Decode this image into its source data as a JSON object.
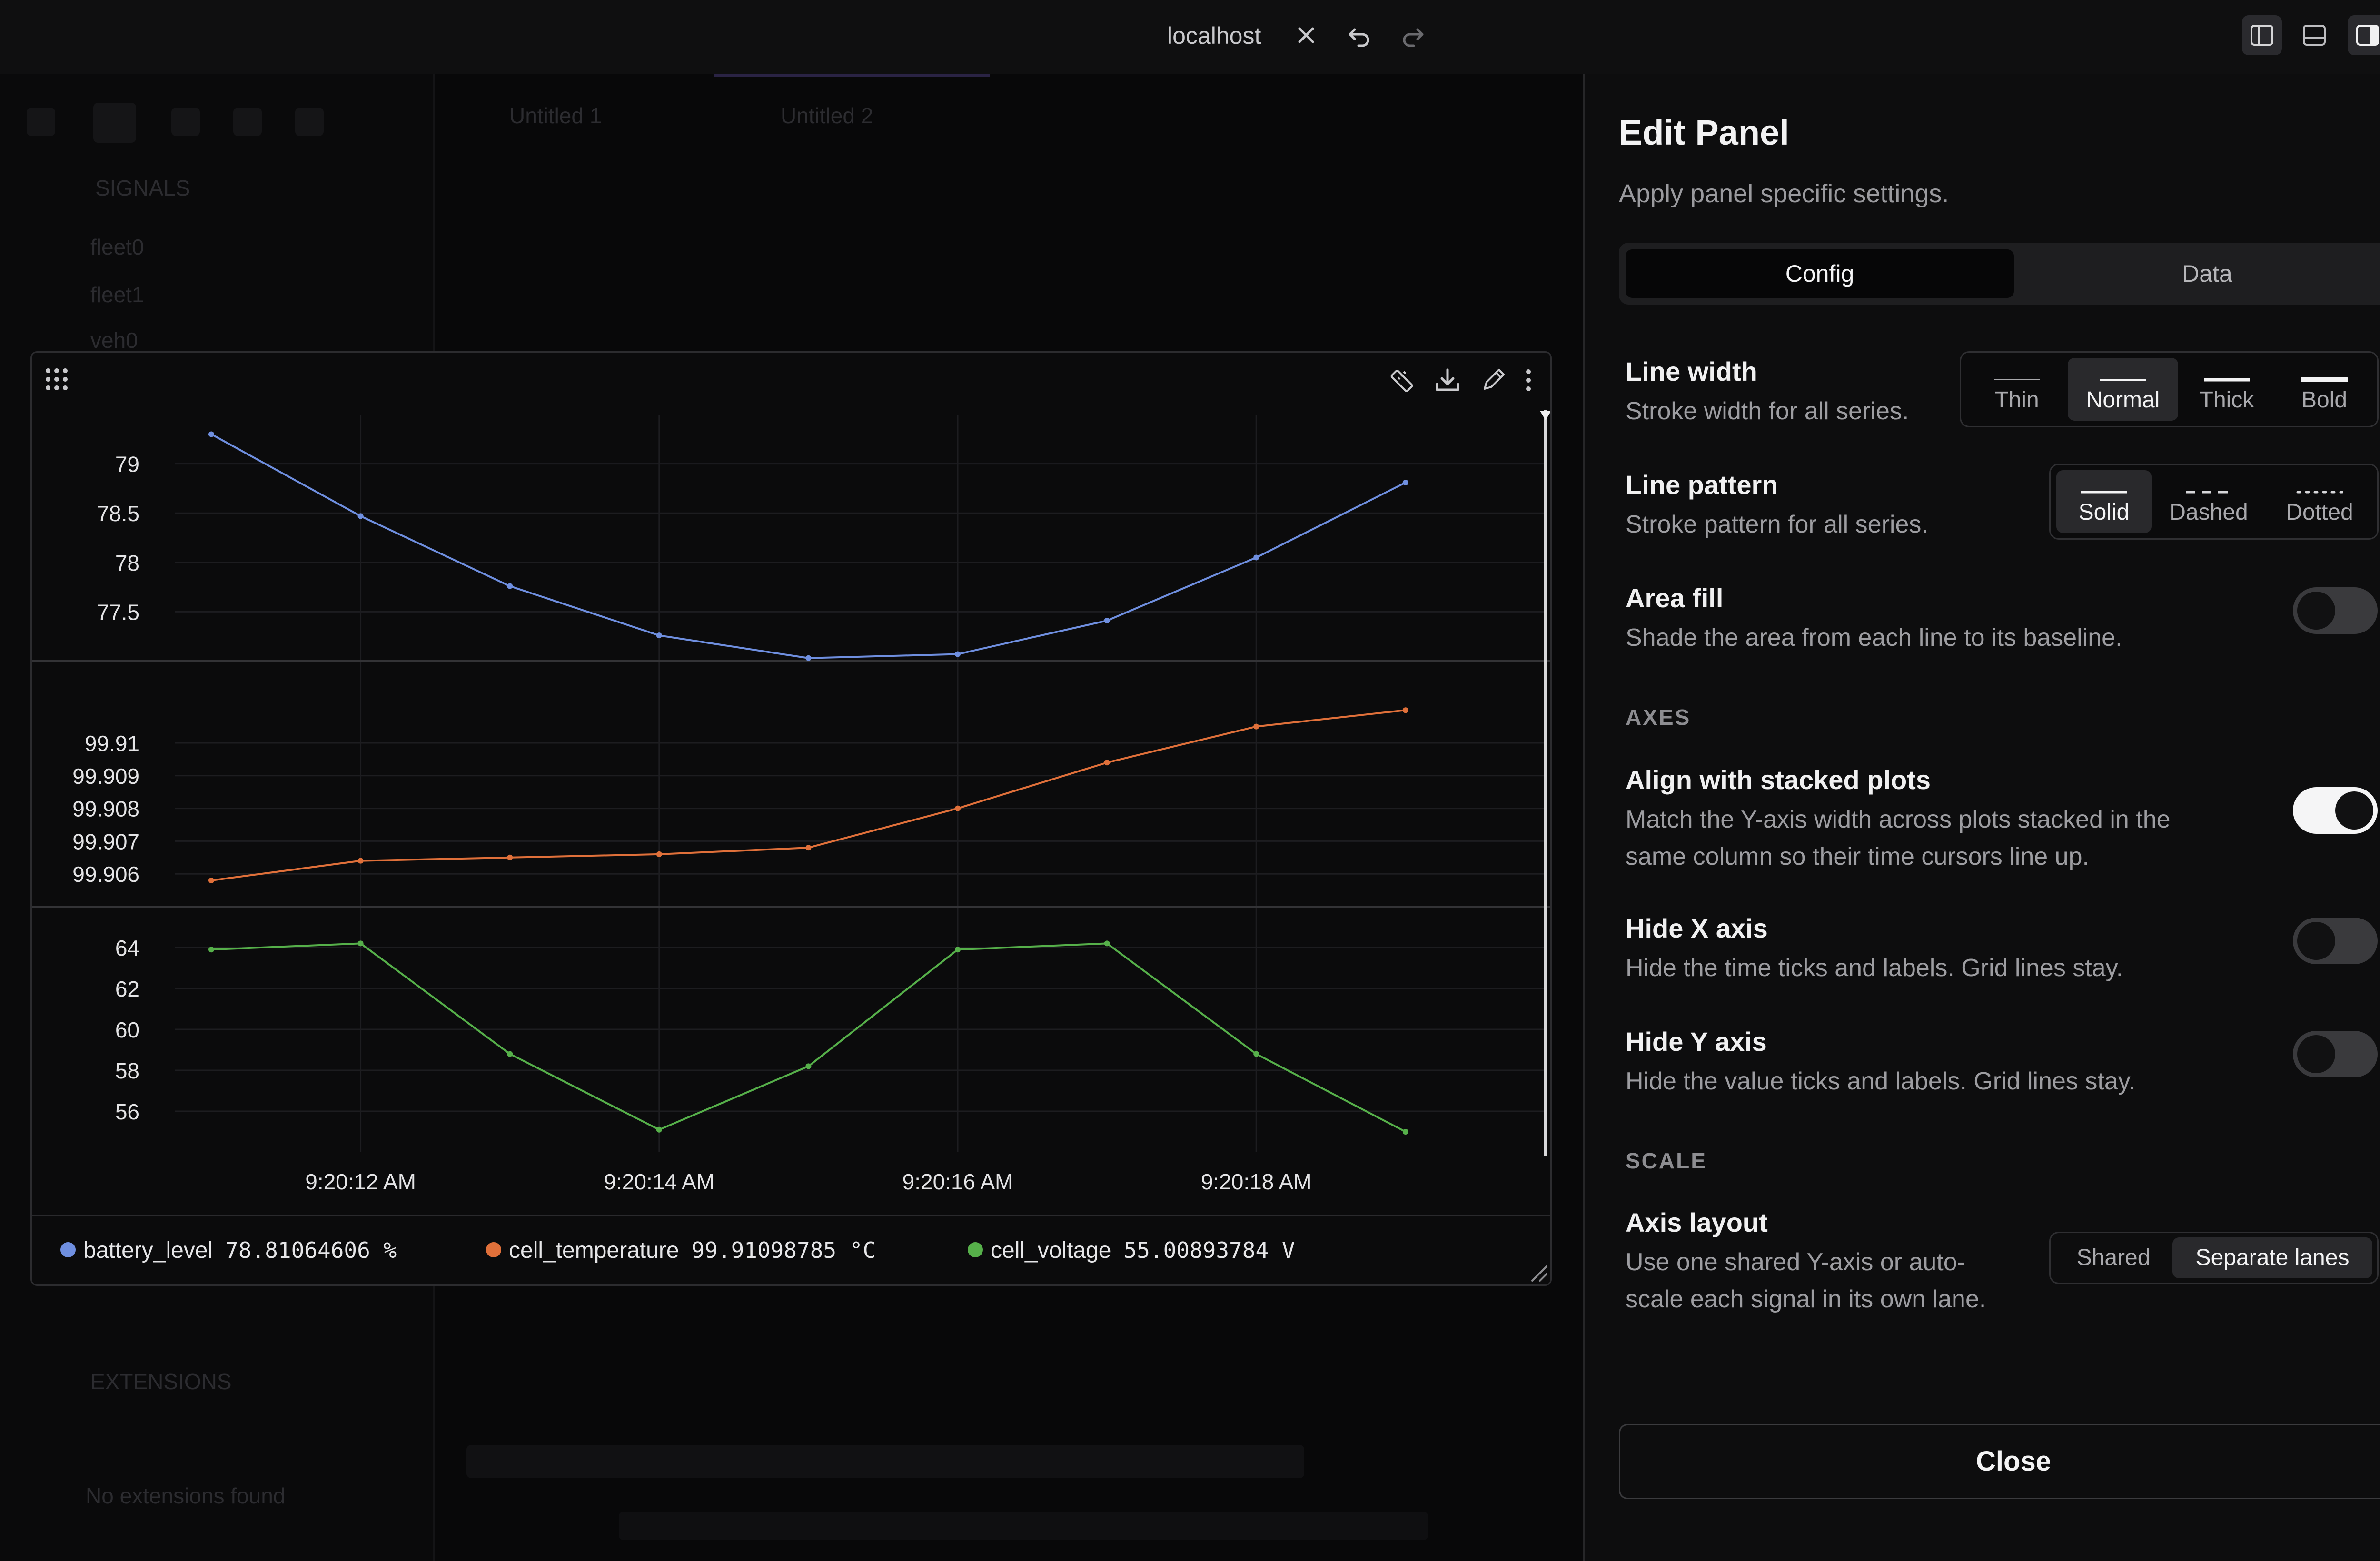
{
  "topbar": {
    "url": "localhost",
    "icons": [
      "close-icon",
      "undo-icon",
      "redo-icon",
      "sidebar-left-icon",
      "panel-bottom-icon",
      "sidebar-right-icon"
    ]
  },
  "background_app": {
    "tabs": [
      "Untitled 1",
      "Untitled 2"
    ],
    "tree_header": "SIGNALS",
    "tree_items": [
      "fleet0",
      "fleet1",
      "veh0"
    ],
    "extensions_header": "EXTENSIONS",
    "extensions_empty": "No extensions found"
  },
  "plot": {
    "tool_icons": [
      "ruler-icon",
      "download-icon",
      "pencil-icon",
      "more-vertical-icon"
    ],
    "legend": [
      {
        "name": "battery_level",
        "value": "78.81064606 %",
        "color": "#6f8fe0"
      },
      {
        "name": "cell_temperature",
        "value": "99.91098785 °C",
        "color": "#e0703a"
      },
      {
        "name": "cell_voltage",
        "value": "55.00893784 V",
        "color": "#56b04a"
      }
    ]
  },
  "chart_data": {
    "type": "line",
    "layout": "separate-lanes",
    "grid": true,
    "x": [
      "9:20:11 AM",
      "9:20:12 AM",
      "9:20:13 AM",
      "9:20:14 AM",
      "9:20:15 AM",
      "9:20:16 AM",
      "9:20:17 AM",
      "9:20:18 AM",
      "9:20:19 AM"
    ],
    "x_tick_labels": [
      "9:20:12 AM",
      "9:20:14 AM",
      "9:20:16 AM",
      "9:20:18 AM"
    ],
    "lanes": [
      {
        "series": "battery_level",
        "color": "#6f8fe0",
        "ylim": [
          77,
          79.5
        ],
        "yticks": [
          {
            "v": 79,
            "label": "79"
          },
          {
            "v": 78.5,
            "label": "78.5"
          },
          {
            "v": 78,
            "label": "78"
          },
          {
            "v": 77.5,
            "label": "77.5"
          }
        ],
        "values": [
          79.3,
          78.47,
          77.76,
          77.26,
          77.03,
          77.07,
          77.41,
          78.05,
          78.81
        ]
      },
      {
        "series": "cell_temperature",
        "color": "#e0703a",
        "ylim": [
          99.905,
          99.9125
        ],
        "yticks": [
          {
            "v": 99.91,
            "label": "99.91"
          },
          {
            "v": 99.909,
            "label": "99.909"
          },
          {
            "v": 99.908,
            "label": "99.908"
          },
          {
            "v": 99.907,
            "label": "99.907"
          },
          {
            "v": 99.906,
            "label": "99.906"
          }
        ],
        "values": [
          99.9058,
          99.9064,
          99.9065,
          99.9066,
          99.9068,
          99.908,
          99.9094,
          99.9105,
          99.911
        ]
      },
      {
        "series": "cell_voltage",
        "color": "#56b04a",
        "ylim": [
          54,
          66
        ],
        "yticks": [
          {
            "v": 64,
            "label": "64"
          },
          {
            "v": 62,
            "label": "62"
          },
          {
            "v": 60,
            "label": "60"
          },
          {
            "v": 58,
            "label": "58"
          },
          {
            "v": 56,
            "label": "56"
          }
        ],
        "values": [
          63.9,
          64.2,
          58.8,
          55.1,
          58.2,
          63.9,
          64.2,
          58.8,
          55.0
        ]
      }
    ]
  },
  "edit_panel": {
    "title": "Edit Panel",
    "subtitle": "Apply panel specific settings.",
    "tabs": {
      "config": "Config",
      "data": "Data"
    },
    "line_width": {
      "label": "Line width",
      "desc": "Stroke width for all series.",
      "options": [
        "Thin",
        "Normal",
        "Thick",
        "Bold"
      ],
      "selected": "Normal"
    },
    "line_pattern": {
      "label": "Line pattern",
      "desc": "Stroke pattern for all series.",
      "options": [
        "Solid",
        "Dashed",
        "Dotted"
      ],
      "selected": "Solid"
    },
    "area_fill": {
      "label": "Area fill",
      "desc": "Shade the area from each line to its baseline.",
      "on": false
    },
    "axes_header": "AXES",
    "align_stacked": {
      "label": "Align with stacked plots",
      "desc1": "Match the Y-axis width across plots stacked in the",
      "desc2": "same column so their time cursors line up.",
      "on": true
    },
    "hide_x": {
      "label": "Hide X axis",
      "desc": "Hide the time ticks and labels. Grid lines stay.",
      "on": false
    },
    "hide_y": {
      "label": "Hide Y axis",
      "desc": "Hide the value ticks and labels. Grid lines stay.",
      "on": false
    },
    "scale_header": "SCALE",
    "axis_layout": {
      "label": "Axis layout",
      "desc1": "Use one shared Y-axis or auto-",
      "desc2": "scale each signal in its own lane.",
      "options": [
        "Shared",
        "Separate lanes"
      ],
      "selected": "Separate lanes"
    },
    "close_label": "Close"
  }
}
